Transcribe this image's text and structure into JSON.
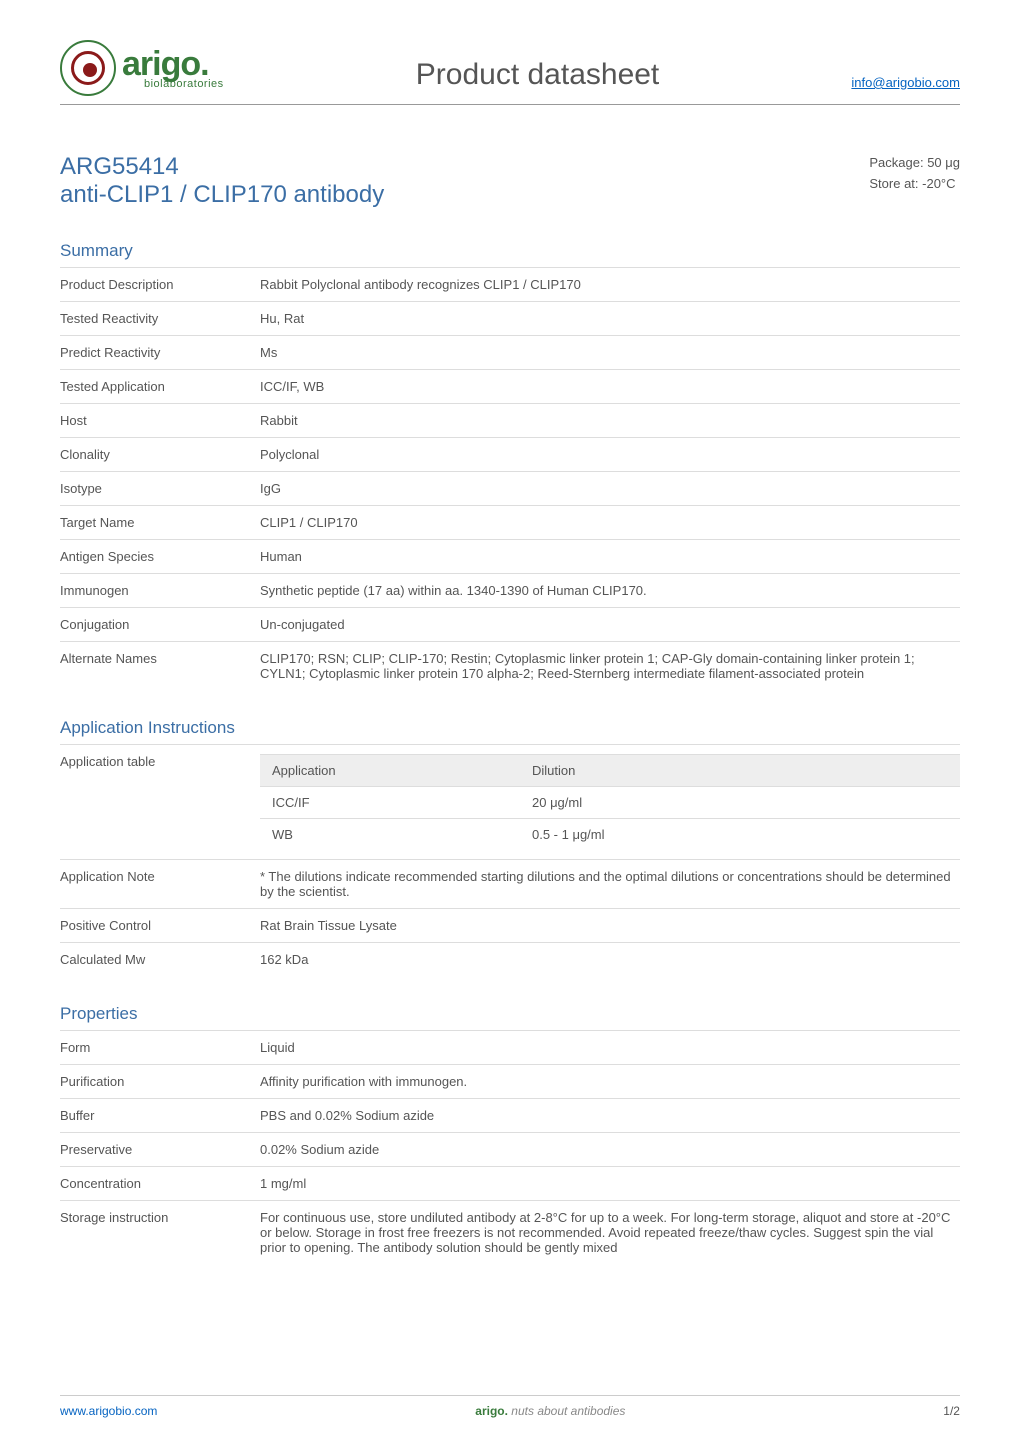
{
  "header": {
    "logo_word": "arigo.",
    "logo_sub": "biolaboratories",
    "doc_title": "Product datasheet",
    "email": "info@arigobio.com"
  },
  "product": {
    "code": "ARG55414",
    "name": "anti-CLIP1 / CLIP170 antibody",
    "package": "Package: 50 μg",
    "store": "Store at: -20°C"
  },
  "summary": {
    "title": "Summary",
    "rows": [
      {
        "k": "Product Description",
        "v": "Rabbit Polyclonal antibody recognizes CLIP1 / CLIP170"
      },
      {
        "k": "Tested Reactivity",
        "v": "Hu, Rat"
      },
      {
        "k": "Predict Reactivity",
        "v": "Ms"
      },
      {
        "k": "Tested Application",
        "v": "ICC/IF, WB"
      },
      {
        "k": "Host",
        "v": "Rabbit"
      },
      {
        "k": "Clonality",
        "v": "Polyclonal"
      },
      {
        "k": "Isotype",
        "v": "IgG"
      },
      {
        "k": "Target Name",
        "v": "CLIP1 / CLIP170"
      },
      {
        "k": "Antigen Species",
        "v": "Human"
      },
      {
        "k": "Immunogen",
        "v": "Synthetic peptide (17 aa) within aa. 1340-1390 of Human CLIP170."
      },
      {
        "k": "Conjugation",
        "v": "Un-conjugated"
      },
      {
        "k": "Alternate Names",
        "v": "CLIP170; RSN; CLIP; CLIP-170; Restin; Cytoplasmic linker protein 1; CAP-Gly domain-containing linker protein 1; CYLN1; Cytoplasmic linker protein 170 alpha-2; Reed-Sternberg intermediate filament-associated protein"
      }
    ]
  },
  "application": {
    "title": "Application Instructions",
    "table_row_label": "Application table",
    "inner_header_app": "Application",
    "inner_header_dil": "Dilution",
    "inner_rows": [
      {
        "app": "ICC/IF",
        "dil": "20 μg/ml"
      },
      {
        "app": "WB",
        "dil": "0.5 - 1 μg/ml"
      }
    ],
    "rows": [
      {
        "k": "Application Note",
        "v": "* The dilutions indicate recommended starting dilutions and the optimal dilutions or concentrations should be determined by the scientist."
      },
      {
        "k": "Positive Control",
        "v": "Rat Brain Tissue Lysate"
      },
      {
        "k": "Calculated Mw",
        "v": "162 kDa"
      }
    ]
  },
  "properties": {
    "title": "Properties",
    "rows": [
      {
        "k": "Form",
        "v": "Liquid"
      },
      {
        "k": "Purification",
        "v": "Affinity purification with immunogen."
      },
      {
        "k": "Buffer",
        "v": "PBS and 0.02% Sodium azide"
      },
      {
        "k": "Preservative",
        "v": "0.02% Sodium azide"
      },
      {
        "k": "Concentration",
        "v": "1 mg/ml"
      },
      {
        "k": "Storage instruction",
        "v": "For continuous use, store undiluted antibody at 2-8°C for up to a week. For long-term storage, aliquot and store at -20°C or below. Storage in frost free freezers is not recommended. Avoid repeated freeze/thaw cycles. Suggest spin the vial prior to opening. The antibody solution should be gently mixed"
      }
    ]
  },
  "footer": {
    "site": "www.arigobio.com",
    "tag_brand": "arigo.",
    "tag_rest": "nuts about antibodies",
    "pageno": "1/2"
  },
  "colors": {
    "brand_green": "#397b3c",
    "brand_red": "#8b1a1a",
    "heading_blue": "#3b6ea5",
    "link_blue": "#0563c1",
    "text_gray": "#555555",
    "rule_gray": "#dddddd",
    "shade_bg": "#eeeeee"
  },
  "typography": {
    "base_pt": 13,
    "doc_title_pt": 30,
    "prod_title_pt": 24,
    "section_title_pt": 17
  }
}
